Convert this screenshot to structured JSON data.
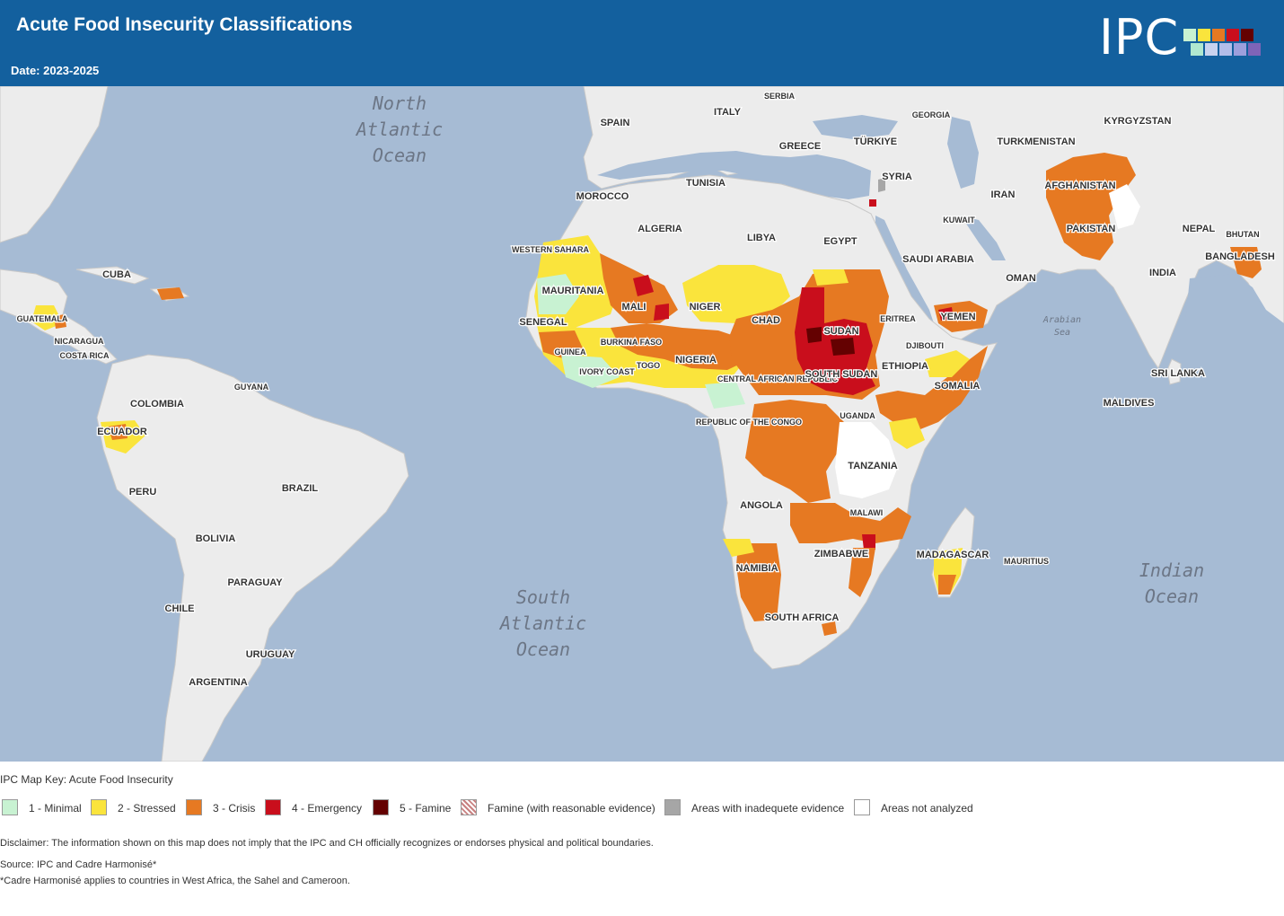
{
  "header": {
    "title": "Acute Food Insecurity Classifications",
    "date": "Date: 2023-2025",
    "logo_text": "IPC",
    "logo_colors": [
      "#c8f2d2",
      "#fae43c",
      "#e67922",
      "#c90e1c",
      "#640101",
      "#b0e8d0",
      "#c9d3ef",
      "#b3bde9",
      "#9d9fdc",
      "#7e64b8"
    ]
  },
  "map": {
    "ocean_labels": [
      {
        "lines": [
          "North",
          "Atlantic",
          "Ocean"
        ]
      },
      {
        "lines": [
          "South",
          "Atlantic",
          "Ocean"
        ]
      },
      {
        "lines": [
          "Indian",
          "Ocean"
        ]
      },
      {
        "lines": [
          "Arabian",
          "Sea"
        ]
      }
    ],
    "country_labels": [
      "SPAIN",
      "ITALY",
      "SERBIA",
      "GEORGIA",
      "KYRGYZSTAN",
      "GREECE",
      "TÜRKIYE",
      "TURKMENISTAN",
      "SYRIA",
      "AFGHANISTAN",
      "TUNISIA",
      "MOROCCO",
      "IRAN",
      "KUWAIT",
      "ALGERIA",
      "LIBYA",
      "EGYPT",
      "PAKISTAN",
      "NEPAL",
      "BHUTAN",
      "WESTERN SAHARA",
      "SAUDI ARABIA",
      "BANGLADESH",
      "INDIA",
      "MAURITANIA",
      "OMAN",
      "MALI",
      "NIGER",
      "CHAD",
      "SUDAN",
      "ERITREA",
      "YEMEN",
      "SENEGAL",
      "BURKINA FASO",
      "GUINEA",
      "DJIBOUTI",
      "NIGERIA",
      "IVORY COAST",
      "TOGO",
      "ETHIOPIA",
      "CENTRAL AFRICAN REPUBLIC",
      "SOUTH SUDAN",
      "SOMALIA",
      "SRI LANKA",
      "MALDIVES",
      "CUBA",
      "GUATEMALA",
      "NICARAGUA",
      "COSTA RICA",
      "COLOMBIA",
      "GUYANA",
      "ECUADOR",
      "REPUBLIC OF THE CONGO",
      "UGANDA",
      "TANZANIA",
      "PERU",
      "BRAZIL",
      "ANGOLA",
      "MALAWI",
      "BOLIVIA",
      "ZIMBABWE",
      "NAMIBIA",
      "MADAGASCAR",
      "MAURITIUS",
      "PARAGUAY",
      "CHILE",
      "SOUTH AFRICA",
      "URUGUAY",
      "ARGENTINA"
    ]
  },
  "legend": {
    "title": "IPC Map Key: Acute Food Insecurity",
    "items": [
      {
        "label": "1 - Minimal",
        "color": "#c8f2d2"
      },
      {
        "label": "2 - Stressed",
        "color": "#fae43c"
      },
      {
        "label": "3 - Crisis",
        "color": "#e67922"
      },
      {
        "label": "4 - Emergency",
        "color": "#c90e1c"
      },
      {
        "label": "5 - Famine",
        "color": "#640101"
      },
      {
        "label": "Famine (with reasonable evidence)",
        "color": "#c88080"
      },
      {
        "label": "Areas with inadequete evidence",
        "color": "#a6a6a6"
      },
      {
        "label": "Areas not analyzed",
        "color": "#ffffff"
      }
    ]
  },
  "footer": {
    "disclaimer": "Disclaimer: The information shown on this map does not imply that the IPC and CH officially recognizes or endorses physical and political boundaries.",
    "source": "Source: IPC and Cadre Harmonisé*",
    "note": "*Cadre Harmonisé applies to countries in West Africa, the Sahel and Cameroon."
  }
}
